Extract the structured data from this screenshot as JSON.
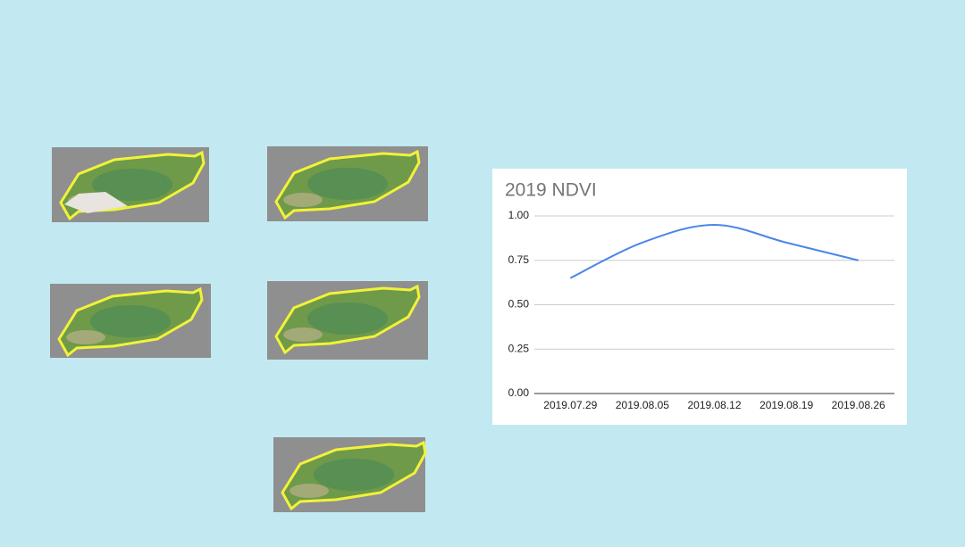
{
  "chart_data": {
    "type": "line",
    "title": "2019 NDVI",
    "categories": [
      "2019.07.29",
      "2019.08.05",
      "2019.08.12",
      "2019.08.19",
      "2019.08.26"
    ],
    "values": [
      0.65,
      0.85,
      0.95,
      0.85,
      0.75
    ],
    "color": "#4a86e8",
    "ylim": [
      0,
      1
    ],
    "yticks": [
      {
        "value": 0,
        "label": "0.00"
      },
      {
        "value": 0.25,
        "label": "0.25"
      },
      {
        "value": 0.5,
        "label": "0.50"
      },
      {
        "value": 0.75,
        "label": "0.75"
      },
      {
        "value": 1,
        "label": "1.00"
      }
    ],
    "grid": true
  }
}
